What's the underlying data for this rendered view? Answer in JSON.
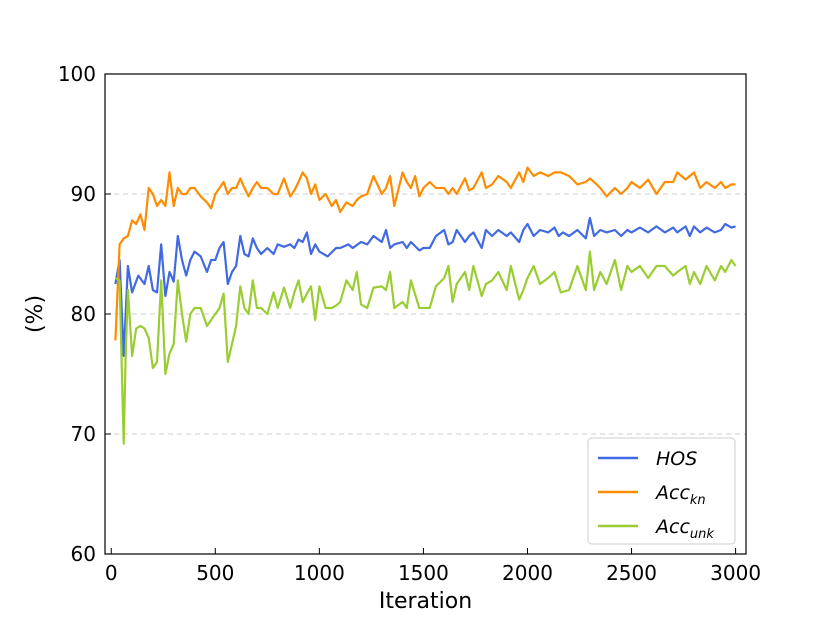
{
  "chart_data": {
    "type": "line",
    "xlabel": "Iteration",
    "ylabel": "(%)",
    "xlim": [
      -30,
      3050
    ],
    "ylim": [
      60,
      100
    ],
    "xticks": [
      0,
      500,
      1000,
      1500,
      2000,
      2500,
      3000
    ],
    "yticks": [
      60,
      70,
      80,
      90,
      100
    ],
    "grid": {
      "y": true,
      "x": false,
      "style": "dashed"
    },
    "legend_position": "lower-right",
    "series": [
      {
        "name": "HOS",
        "label_main": "HOS",
        "label_sub": "",
        "color": "#4169E1",
        "x": [
          20,
          40,
          60,
          80,
          100,
          130,
          160,
          180,
          200,
          220,
          240,
          260,
          280,
          300,
          320,
          340,
          360,
          380,
          400,
          430,
          460,
          480,
          500,
          520,
          540,
          560,
          580,
          600,
          620,
          640,
          660,
          680,
          700,
          720,
          750,
          780,
          800,
          830,
          860,
          880,
          900,
          920,
          940,
          960,
          980,
          1000,
          1040,
          1080,
          1100,
          1140,
          1160,
          1200,
          1230,
          1260,
          1300,
          1320,
          1340,
          1360,
          1400,
          1420,
          1440,
          1480,
          1500,
          1530,
          1560,
          1600,
          1620,
          1640,
          1660,
          1700,
          1720,
          1740,
          1780,
          1800,
          1830,
          1860,
          1900,
          1920,
          1960,
          1980,
          2000,
          2030,
          2060,
          2100,
          2130,
          2150,
          2170,
          2200,
          2240,
          2280,
          2300,
          2320,
          2350,
          2380,
          2420,
          2450,
          2480,
          2500,
          2540,
          2580,
          2620,
          2660,
          2700,
          2720,
          2760,
          2780,
          2800,
          2830,
          2860,
          2900,
          2930,
          2950,
          2980,
          3000
        ],
        "values": [
          82.5,
          84.5,
          76.5,
          84.0,
          81.8,
          83.2,
          82.5,
          84.0,
          82.0,
          81.8,
          85.8,
          81.5,
          83.5,
          82.7,
          86.5,
          84.5,
          83.2,
          84.5,
          85.2,
          84.8,
          83.5,
          84.5,
          84.5,
          85.5,
          86.0,
          82.5,
          83.5,
          84.0,
          86.5,
          85.0,
          84.8,
          86.3,
          85.5,
          85.0,
          85.5,
          85.0,
          85.8,
          85.6,
          85.8,
          85.5,
          86.2,
          86.0,
          86.8,
          85.0,
          85.8,
          85.2,
          84.8,
          85.5,
          85.5,
          85.8,
          85.5,
          86.0,
          85.8,
          86.5,
          86.0,
          87.0,
          85.5,
          85.8,
          86.0,
          85.5,
          86.0,
          85.3,
          85.5,
          85.5,
          86.5,
          87.0,
          85.8,
          86.0,
          87.0,
          86.0,
          86.5,
          86.8,
          85.5,
          87.0,
          86.5,
          87.0,
          86.5,
          86.8,
          86.0,
          87.0,
          87.5,
          86.5,
          87.0,
          86.8,
          87.2,
          86.5,
          86.8,
          86.5,
          87.0,
          86.3,
          88.0,
          86.5,
          87.0,
          86.8,
          87.0,
          86.5,
          87.0,
          86.8,
          87.2,
          86.8,
          87.3,
          86.8,
          87.2,
          86.8,
          87.3,
          86.5,
          87.3,
          86.8,
          87.2,
          86.8,
          87.0,
          87.5,
          87.2,
          87.3
        ],
        "legend_marker": "line"
      },
      {
        "name": "Acc_kn",
        "label_main": "Acc",
        "label_sub": "kn",
        "color": "#FF8C00",
        "x": [
          20,
          40,
          60,
          80,
          100,
          120,
          140,
          160,
          180,
          200,
          220,
          240,
          260,
          280,
          300,
          320,
          340,
          360,
          380,
          400,
          430,
          460,
          480,
          500,
          520,
          540,
          560,
          580,
          600,
          620,
          640,
          660,
          680,
          700,
          720,
          750,
          780,
          800,
          830,
          860,
          880,
          900,
          920,
          940,
          960,
          980,
          1000,
          1030,
          1060,
          1080,
          1100,
          1130,
          1160,
          1180,
          1200,
          1230,
          1260,
          1300,
          1320,
          1340,
          1360,
          1400,
          1420,
          1440,
          1460,
          1480,
          1500,
          1530,
          1560,
          1600,
          1620,
          1640,
          1660,
          1700,
          1720,
          1740,
          1780,
          1800,
          1830,
          1860,
          1900,
          1920,
          1960,
          1980,
          2000,
          2030,
          2060,
          2100,
          2130,
          2160,
          2200,
          2240,
          2280,
          2300,
          2320,
          2350,
          2380,
          2420,
          2450,
          2480,
          2500,
          2540,
          2580,
          2620,
          2660,
          2700,
          2720,
          2760,
          2780,
          2800,
          2830,
          2860,
          2900,
          2930,
          2950,
          2980,
          3000
        ],
        "values": [
          77.8,
          85.8,
          86.3,
          86.5,
          87.8,
          87.5,
          88.3,
          87.0,
          90.5,
          90.0,
          89.0,
          89.5,
          89.0,
          91.8,
          89.0,
          90.5,
          90.0,
          90.0,
          90.5,
          90.5,
          89.8,
          89.3,
          88.8,
          90.0,
          90.5,
          91.0,
          90.0,
          90.5,
          90.5,
          91.3,
          90.5,
          89.8,
          90.5,
          91.0,
          90.5,
          90.5,
          90.0,
          90.0,
          91.3,
          89.8,
          90.3,
          91.0,
          91.8,
          91.3,
          90.0,
          90.8,
          89.5,
          90.0,
          89.0,
          89.5,
          88.5,
          89.3,
          89.0,
          89.5,
          89.8,
          90.0,
          91.5,
          90.0,
          90.5,
          91.5,
          89.0,
          91.8,
          91.0,
          90.5,
          91.5,
          89.8,
          90.5,
          91.0,
          90.5,
          90.5,
          90.0,
          90.5,
          90.0,
          91.3,
          90.3,
          90.5,
          91.8,
          90.5,
          90.8,
          91.5,
          91.0,
          90.5,
          91.8,
          91.0,
          92.2,
          91.5,
          91.8,
          91.5,
          91.8,
          91.8,
          91.5,
          90.8,
          91.0,
          91.3,
          91.0,
          90.5,
          89.8,
          90.5,
          90.0,
          90.5,
          91.0,
          90.5,
          91.2,
          90.0,
          91.0,
          91.0,
          91.8,
          91.2,
          91.5,
          91.8,
          90.5,
          91.0,
          90.5,
          91.0,
          90.5,
          90.8,
          90.8
        ],
        "legend_marker": "line"
      },
      {
        "name": "Acc_unk",
        "label_main": "Acc",
        "label_sub": "unk",
        "color": "#9ACD32",
        "x": [
          20,
          40,
          60,
          70,
          80,
          100,
          120,
          140,
          160,
          180,
          200,
          220,
          240,
          260,
          280,
          300,
          320,
          340,
          360,
          380,
          400,
          430,
          460,
          480,
          500,
          520,
          540,
          560,
          580,
          600,
          620,
          640,
          660,
          680,
          700,
          720,
          750,
          780,
          800,
          830,
          860,
          880,
          900,
          920,
          940,
          960,
          980,
          1000,
          1030,
          1060,
          1080,
          1100,
          1130,
          1160,
          1180,
          1200,
          1230,
          1260,
          1300,
          1320,
          1340,
          1360,
          1400,
          1420,
          1440,
          1480,
          1500,
          1530,
          1560,
          1600,
          1620,
          1640,
          1660,
          1700,
          1720,
          1740,
          1780,
          1800,
          1830,
          1860,
          1900,
          1920,
          1960,
          1980,
          2000,
          2030,
          2060,
          2100,
          2130,
          2160,
          2200,
          2240,
          2280,
          2300,
          2320,
          2350,
          2380,
          2420,
          2450,
          2480,
          2500,
          2540,
          2580,
          2620,
          2660,
          2700,
          2720,
          2760,
          2780,
          2800,
          2830,
          2860,
          2900,
          2930,
          2950,
          2980,
          3000
        ],
        "values": [
          83.0,
          82.8,
          69.2,
          77.0,
          82.0,
          76.5,
          78.8,
          79.0,
          78.8,
          78.0,
          75.5,
          76.0,
          82.8,
          75.0,
          76.7,
          77.5,
          82.8,
          80.0,
          77.7,
          80.0,
          80.5,
          80.5,
          79.0,
          79.5,
          80.0,
          80.5,
          81.7,
          76.0,
          77.5,
          79.0,
          82.3,
          80.5,
          80.0,
          82.8,
          80.5,
          80.5,
          80.0,
          81.8,
          80.5,
          82.2,
          80.5,
          81.8,
          82.8,
          81.0,
          81.7,
          82.3,
          79.5,
          82.3,
          80.5,
          80.5,
          80.7,
          81.0,
          82.8,
          82.0,
          83.5,
          80.8,
          80.5,
          82.2,
          82.3,
          82.0,
          83.5,
          80.5,
          81.0,
          80.5,
          82.8,
          80.5,
          80.5,
          80.5,
          82.3,
          83.0,
          84.0,
          81.0,
          82.5,
          83.5,
          82.0,
          84.0,
          81.5,
          82.5,
          82.8,
          83.5,
          82.0,
          84.0,
          81.2,
          82.0,
          83.0,
          84.0,
          82.5,
          83.0,
          83.5,
          81.8,
          82.0,
          84.0,
          82.0,
          85.2,
          82.0,
          83.5,
          82.5,
          84.5,
          82.0,
          84.0,
          83.5,
          84.0,
          83.0,
          84.0,
          84.0,
          83.2,
          83.5,
          84.0,
          82.5,
          83.5,
          82.5,
          84.0,
          82.8,
          84.0,
          83.5,
          84.5,
          84.0
        ],
        "legend_marker": "line"
      }
    ]
  }
}
